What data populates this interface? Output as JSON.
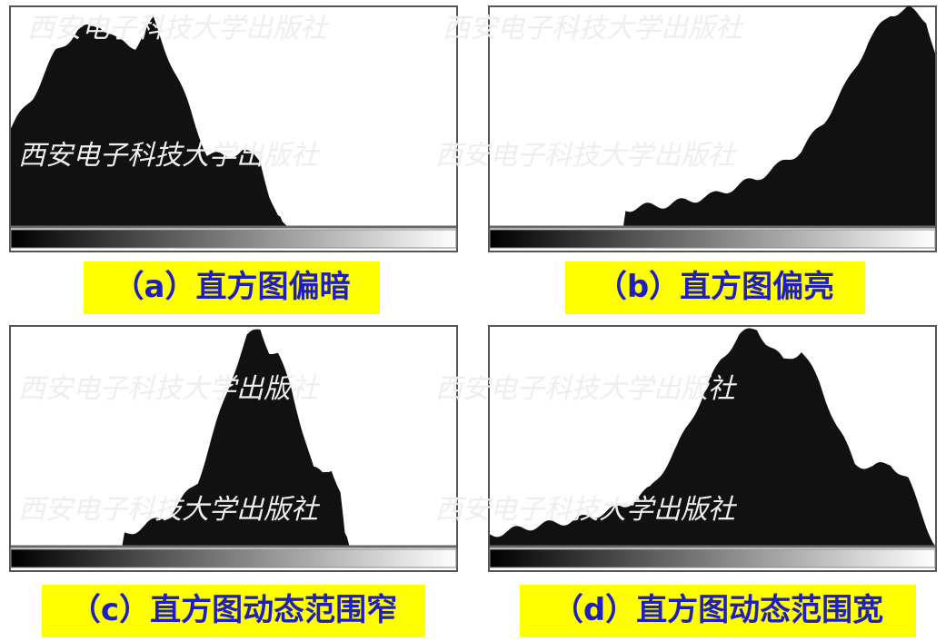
{
  "watermark_text": "西安电子科技大学出版社",
  "colors": {
    "caption_bg": "#ffff00",
    "caption_text": "#1f1fbf",
    "histogram_fill": "#111111",
    "frame": "#555555"
  },
  "panels": [
    {
      "caption": "（a）直方图偏暗"
    },
    {
      "caption": "（b）直方图偏亮"
    },
    {
      "caption": "（c）直方图动态范围窄"
    },
    {
      "caption": "（d）直方图动态范围宽"
    }
  ],
  "chart_data": [
    {
      "type": "area",
      "title": "（a）直方图偏暗",
      "xlim": [
        0,
        1
      ],
      "ylim": [
        0,
        1
      ],
      "x": [
        0,
        0.05,
        0.1,
        0.15,
        0.2,
        0.24,
        0.28,
        0.32,
        0.36,
        0.4,
        0.44,
        0.48,
        0.52,
        0.56,
        0.58,
        0.6,
        0.62,
        0.64
      ],
      "y": [
        0.45,
        0.6,
        0.8,
        0.9,
        0.93,
        0.85,
        0.83,
        0.95,
        0.75,
        0.55,
        0.33,
        0.32,
        0.35,
        0.3,
        0.15,
        0.04,
        0,
        0
      ],
      "grid": false
    },
    {
      "type": "area",
      "title": "（b）直方图偏亮",
      "xlim": [
        0,
        1
      ],
      "ylim": [
        0,
        1
      ],
      "x": [
        0,
        0.3,
        0.301,
        0.4,
        0.5,
        0.6,
        0.65,
        0.7,
        0.75,
        0.8,
        0.85,
        0.9,
        0.94,
        0.98,
        1.0
      ],
      "y": [
        0,
        0,
        0.08,
        0.1,
        0.14,
        0.22,
        0.28,
        0.35,
        0.48,
        0.65,
        0.85,
        0.98,
        1.0,
        0.95,
        0.8
      ],
      "grid": false
    },
    {
      "type": "area",
      "title": "（c）直方图动态范围窄",
      "xlim": [
        0,
        1
      ],
      "ylim": [
        0,
        1
      ],
      "x": [
        0,
        0.25,
        0.251,
        0.3,
        0.36,
        0.42,
        0.46,
        0.5,
        0.53,
        0.56,
        0.58,
        0.6,
        0.63,
        0.66,
        0.68,
        0.7,
        0.72,
        0.74,
        0.75,
        0.76,
        1.0
      ],
      "y": [
        0,
        0,
        0.05,
        0.09,
        0.15,
        0.3,
        0.55,
        0.8,
        0.96,
        1.0,
        0.9,
        0.88,
        0.72,
        0.5,
        0.35,
        0.33,
        0.36,
        0.25,
        0.05,
        0,
        0
      ],
      "grid": false
    },
    {
      "type": "area",
      "title": "（d）直方图动态范围宽",
      "xlim": [
        0,
        1
      ],
      "ylim": [
        0,
        1
      ],
      "x": [
        0,
        0.1,
        0.2,
        0.3,
        0.36,
        0.42,
        0.48,
        0.52,
        0.56,
        0.6,
        0.62,
        0.66,
        0.7,
        0.74,
        0.78,
        0.82,
        0.86,
        0.9,
        0.94,
        0.98,
        1.0
      ],
      "y": [
        0.05,
        0.09,
        0.12,
        0.18,
        0.26,
        0.45,
        0.7,
        0.86,
        0.97,
        1.0,
        0.94,
        0.85,
        0.9,
        0.75,
        0.55,
        0.38,
        0.36,
        0.38,
        0.3,
        0.1,
        0
      ],
      "grid": false
    }
  ]
}
